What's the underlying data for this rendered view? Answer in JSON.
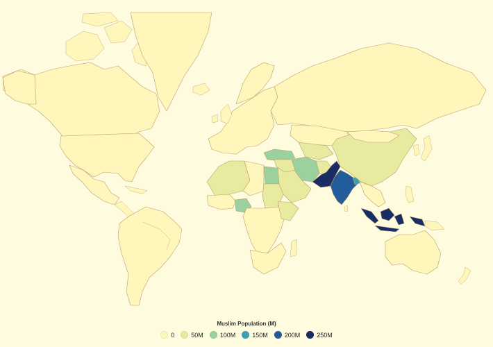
{
  "legend": {
    "title": "Muslim Population (M)",
    "items": [
      {
        "label": "0",
        "color": "#fff6bb"
      },
      {
        "label": "50M",
        "color": "#e8eaa0"
      },
      {
        "label": "100M",
        "color": "#9bd19e"
      },
      {
        "label": "150M",
        "color": "#3f9fb2"
      },
      {
        "label": "200M",
        "color": "#225c9b"
      },
      {
        "label": "250M",
        "color": "#1a2c64"
      }
    ]
  },
  "colors": {
    "background": "#fffbde",
    "border": "#b9a06a",
    "base_fill": "#fff6bb"
  },
  "map_data": {
    "metric": "Muslim Population (M)",
    "scale": "sequential yellow-green-blue",
    "regions": [
      {
        "name": "Indonesia",
        "value": 230,
        "color": "#1a2c64"
      },
      {
        "name": "Pakistan",
        "value": 225,
        "color": "#1a2c64"
      },
      {
        "name": "India",
        "value": 200,
        "color": "#225c9b"
      },
      {
        "name": "Bangladesh",
        "value": 150,
        "color": "#3f9fb2"
      },
      {
        "name": "Nigeria",
        "value": 100,
        "color": "#9bd19e"
      },
      {
        "name": "Egypt",
        "value": 90,
        "color": "#9bd19e"
      },
      {
        "name": "Iran",
        "value": 85,
        "color": "#9bd19e"
      },
      {
        "name": "Turkey",
        "value": 80,
        "color": "#9bd19e"
      },
      {
        "name": "Algeria",
        "value": 40,
        "color": "#e8eaa0"
      },
      {
        "name": "China",
        "value": 25,
        "color": "#e8eaa0"
      },
      {
        "name": "Afghanistan",
        "value": 35,
        "color": "#e8eaa0"
      },
      {
        "name": "Saudi Arabia",
        "value": 30,
        "color": "#e8eaa0"
      },
      {
        "name": "Morocco",
        "value": 35,
        "color": "#e8eaa0"
      },
      {
        "name": "Sudan",
        "value": 40,
        "color": "#e8eaa0"
      },
      {
        "name": "Iraq",
        "value": 38,
        "color": "#e8eaa0"
      },
      {
        "name": "Uzbekistan",
        "value": 30,
        "color": "#e8eaa0"
      },
      {
        "name": "Ethiopia",
        "value": 30,
        "color": "#e8eaa0"
      },
      {
        "name": "Yemen",
        "value": 28,
        "color": "#e8eaa0"
      }
    ]
  }
}
